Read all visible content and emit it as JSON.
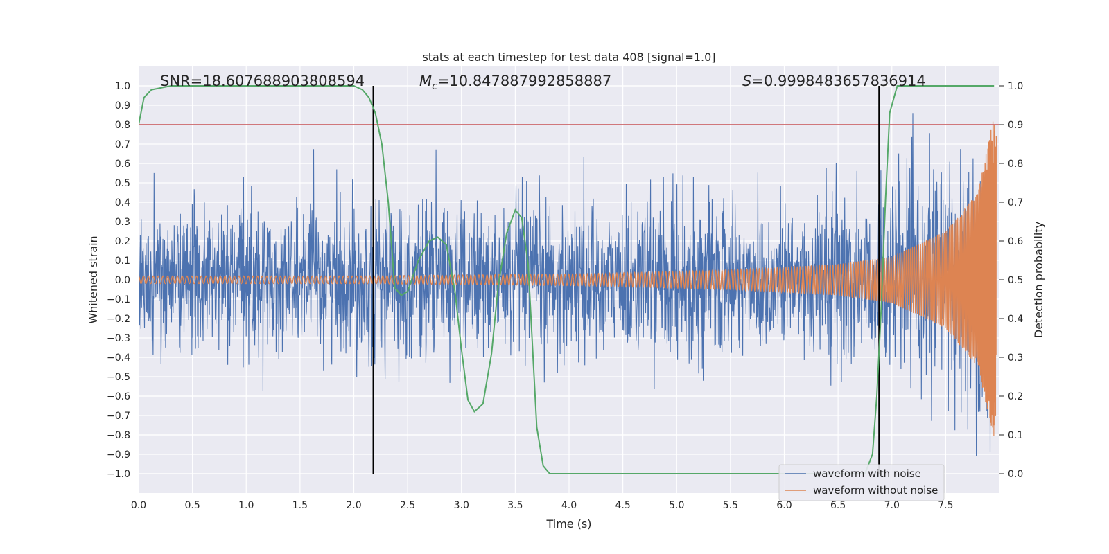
{
  "chart_data": {
    "type": "line",
    "title": "stats at each timestep for test data 408 [signal=1.0]",
    "xlabel": "Time (s)",
    "ylabel_left": "Whitened strain",
    "ylabel_right": "Detection probability",
    "xlim": [
      0.0,
      8.0
    ],
    "ylim_left": [
      -1.1,
      1.1
    ],
    "ylim_right": [
      -0.05,
      1.05
    ],
    "x_ticks": [
      "0.0",
      "0.5",
      "1.0",
      "1.5",
      "2.0",
      "2.5",
      "3.0",
      "3.5",
      "4.0",
      "4.5",
      "5.0",
      "5.5",
      "6.0",
      "6.5",
      "7.0",
      "7.5"
    ],
    "y_left_ticks": [
      "1.0",
      "0.9",
      "0.8",
      "0.7",
      "0.6",
      "0.5",
      "0.4",
      "0.3",
      "0.2",
      "0.1",
      "0.0",
      "−0.1",
      "−0.2",
      "−0.3",
      "−0.4",
      "−0.5",
      "−0.6",
      "−0.7",
      "−0.8",
      "−0.9",
      "−1.0"
    ],
    "y_right_ticks": [
      "1.0",
      "0.9",
      "0.8",
      "0.7",
      "0.6",
      "0.5",
      "0.4",
      "0.3",
      "0.2",
      "0.1",
      "0.0"
    ],
    "grid": true,
    "legend_position": "lower-right",
    "annotations": {
      "snr": "SNR=18.607688903808594",
      "mc_symbol": "M",
      "mc_sub": "c",
      "mc_value": "=10.847887992858887",
      "s_symbol": "S",
      "s_value": "=0.9998483657836914"
    },
    "threshold_line": {
      "axis": "right",
      "y": 0.9,
      "color": "#c44e52"
    },
    "vertical_lines": [
      2.18,
      6.88
    ],
    "series": [
      {
        "name": "waveform with noise",
        "axis": "left",
        "color": "#4c72b0",
        "style": "noise band",
        "envelope_t": [
          0.0,
          1.0,
          2.0,
          3.0,
          4.0,
          5.0,
          6.0,
          6.5,
          7.0,
          7.5,
          7.8,
          7.95
        ],
        "envelope_amp": [
          0.42,
          0.42,
          0.42,
          0.42,
          0.42,
          0.42,
          0.44,
          0.46,
          0.5,
          0.6,
          0.75,
          0.9
        ]
      },
      {
        "name": "waveform without noise",
        "axis": "left",
        "color": "#dd8452",
        "style": "chirp",
        "envelope_t": [
          0.0,
          2.0,
          4.0,
          5.5,
          6.5,
          7.0,
          7.5,
          7.8,
          7.95,
          7.97
        ],
        "envelope_amp": [
          0.02,
          0.02,
          0.03,
          0.05,
          0.08,
          0.12,
          0.25,
          0.45,
          0.85,
          0.9
        ]
      },
      {
        "name": "detection probability",
        "axis": "right",
        "color": "#55a868",
        "x": [
          0.0,
          0.05,
          0.12,
          0.3,
          1.0,
          2.0,
          2.08,
          2.14,
          2.2,
          2.26,
          2.32,
          2.38,
          2.44,
          2.5,
          2.6,
          2.7,
          2.78,
          2.86,
          2.94,
          3.0,
          3.06,
          3.12,
          3.2,
          3.28,
          3.34,
          3.42,
          3.5,
          3.56,
          3.62,
          3.7,
          3.76,
          3.82,
          3.9,
          4.0,
          5.0,
          6.5,
          6.75,
          6.82,
          6.86,
          6.9,
          6.94,
          6.98,
          7.05,
          7.5,
          7.95
        ],
        "y": [
          0.9,
          0.97,
          0.99,
          1.0,
          1.0,
          1.0,
          0.99,
          0.97,
          0.93,
          0.85,
          0.7,
          0.48,
          0.46,
          0.47,
          0.55,
          0.6,
          0.61,
          0.59,
          0.47,
          0.32,
          0.19,
          0.16,
          0.18,
          0.31,
          0.48,
          0.62,
          0.68,
          0.66,
          0.54,
          0.12,
          0.02,
          0.0,
          0.0,
          0.0,
          0.0,
          0.0,
          0.0,
          0.05,
          0.2,
          0.42,
          0.7,
          0.93,
          1.0,
          1.0,
          1.0
        ]
      }
    ]
  }
}
